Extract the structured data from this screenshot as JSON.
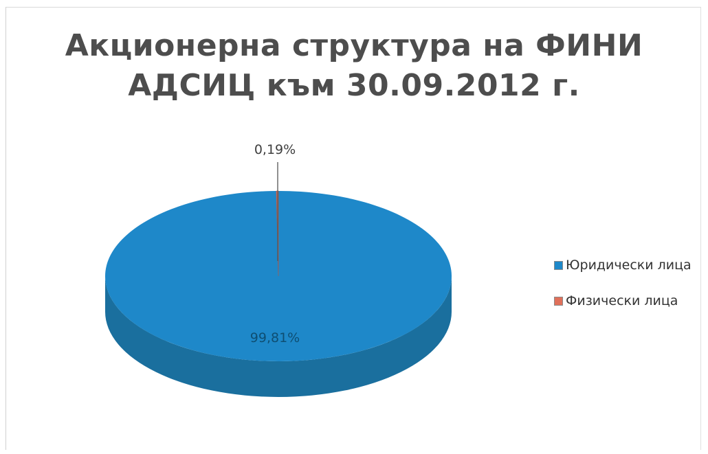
{
  "chart_data": {
    "type": "pie",
    "title": "Акционерна структура на ФИНИ АДСИЦ към 30.09.2012 г.",
    "title_lines": [
      "Акционерна структура на ФИНИ",
      "АДСИЦ към 30.09.2012 г."
    ],
    "style": "3d",
    "legend_position": "right",
    "slices": [
      {
        "label": "Юридически лица",
        "value": 99.81,
        "data_label": "99,81%",
        "color": "#1e88c9",
        "side_color": "#1a6f9e"
      },
      {
        "label": "Физически лица",
        "value": 0.19,
        "data_label": "0,19%",
        "color": "#e0705a",
        "side_color": "#a84c3c"
      }
    ]
  }
}
